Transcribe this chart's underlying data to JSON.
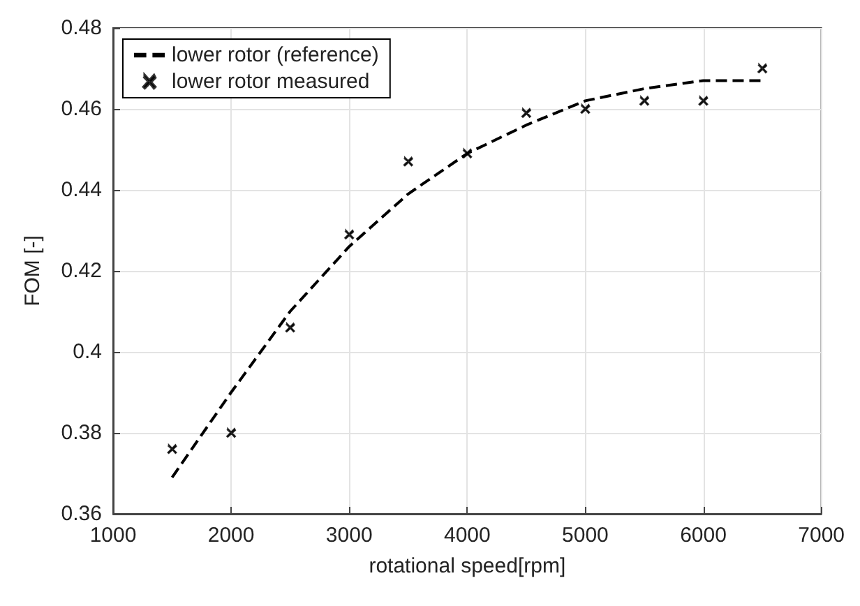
{
  "chart_data": {
    "type": "line",
    "xlabel": "rotational speed[rpm]",
    "ylabel": "FOM [-]",
    "xlim": [
      1000,
      7000
    ],
    "xticks": [
      1000,
      2000,
      3000,
      4000,
      5000,
      6000,
      7000
    ],
    "ylim": [
      0.36,
      0.48
    ],
    "yticks": [
      {
        "value": 0.36,
        "label": "0.36"
      },
      {
        "value": 0.38,
        "label": "0.38"
      },
      {
        "value": 0.4,
        "label": "0.4"
      },
      {
        "value": 0.42,
        "label": "0.42"
      },
      {
        "value": 0.44,
        "label": "0.44"
      },
      {
        "value": 0.46,
        "label": "0.46"
      },
      {
        "value": 0.48,
        "label": "0.48"
      }
    ],
    "grid": true,
    "legend": "top left",
    "series": [
      {
        "name": "lower rotor (reference)",
        "color": "#000000",
        "line_style": "dashed",
        "marker": "none",
        "x": [
          1500,
          2000,
          2500,
          3000,
          3500,
          4000,
          4500,
          5000,
          5500,
          6000,
          6500
        ],
        "values": [
          0.369,
          0.39,
          0.41,
          0.426,
          0.439,
          0.449,
          0.456,
          0.462,
          0.465,
          0.467,
          0.467
        ]
      },
      {
        "name": "lower rotor measured",
        "type": "scatter",
        "color": "#000000",
        "marker": "cross",
        "x": [
          1500,
          2000,
          2500,
          3000,
          3500,
          4000,
          4500,
          5000,
          5500,
          6000,
          6500
        ],
        "values": [
          0.376,
          0.38,
          0.406,
          0.429,
          0.447,
          0.449,
          0.459,
          0.46,
          0.462,
          0.462,
          0.47
        ]
      }
    ]
  }
}
